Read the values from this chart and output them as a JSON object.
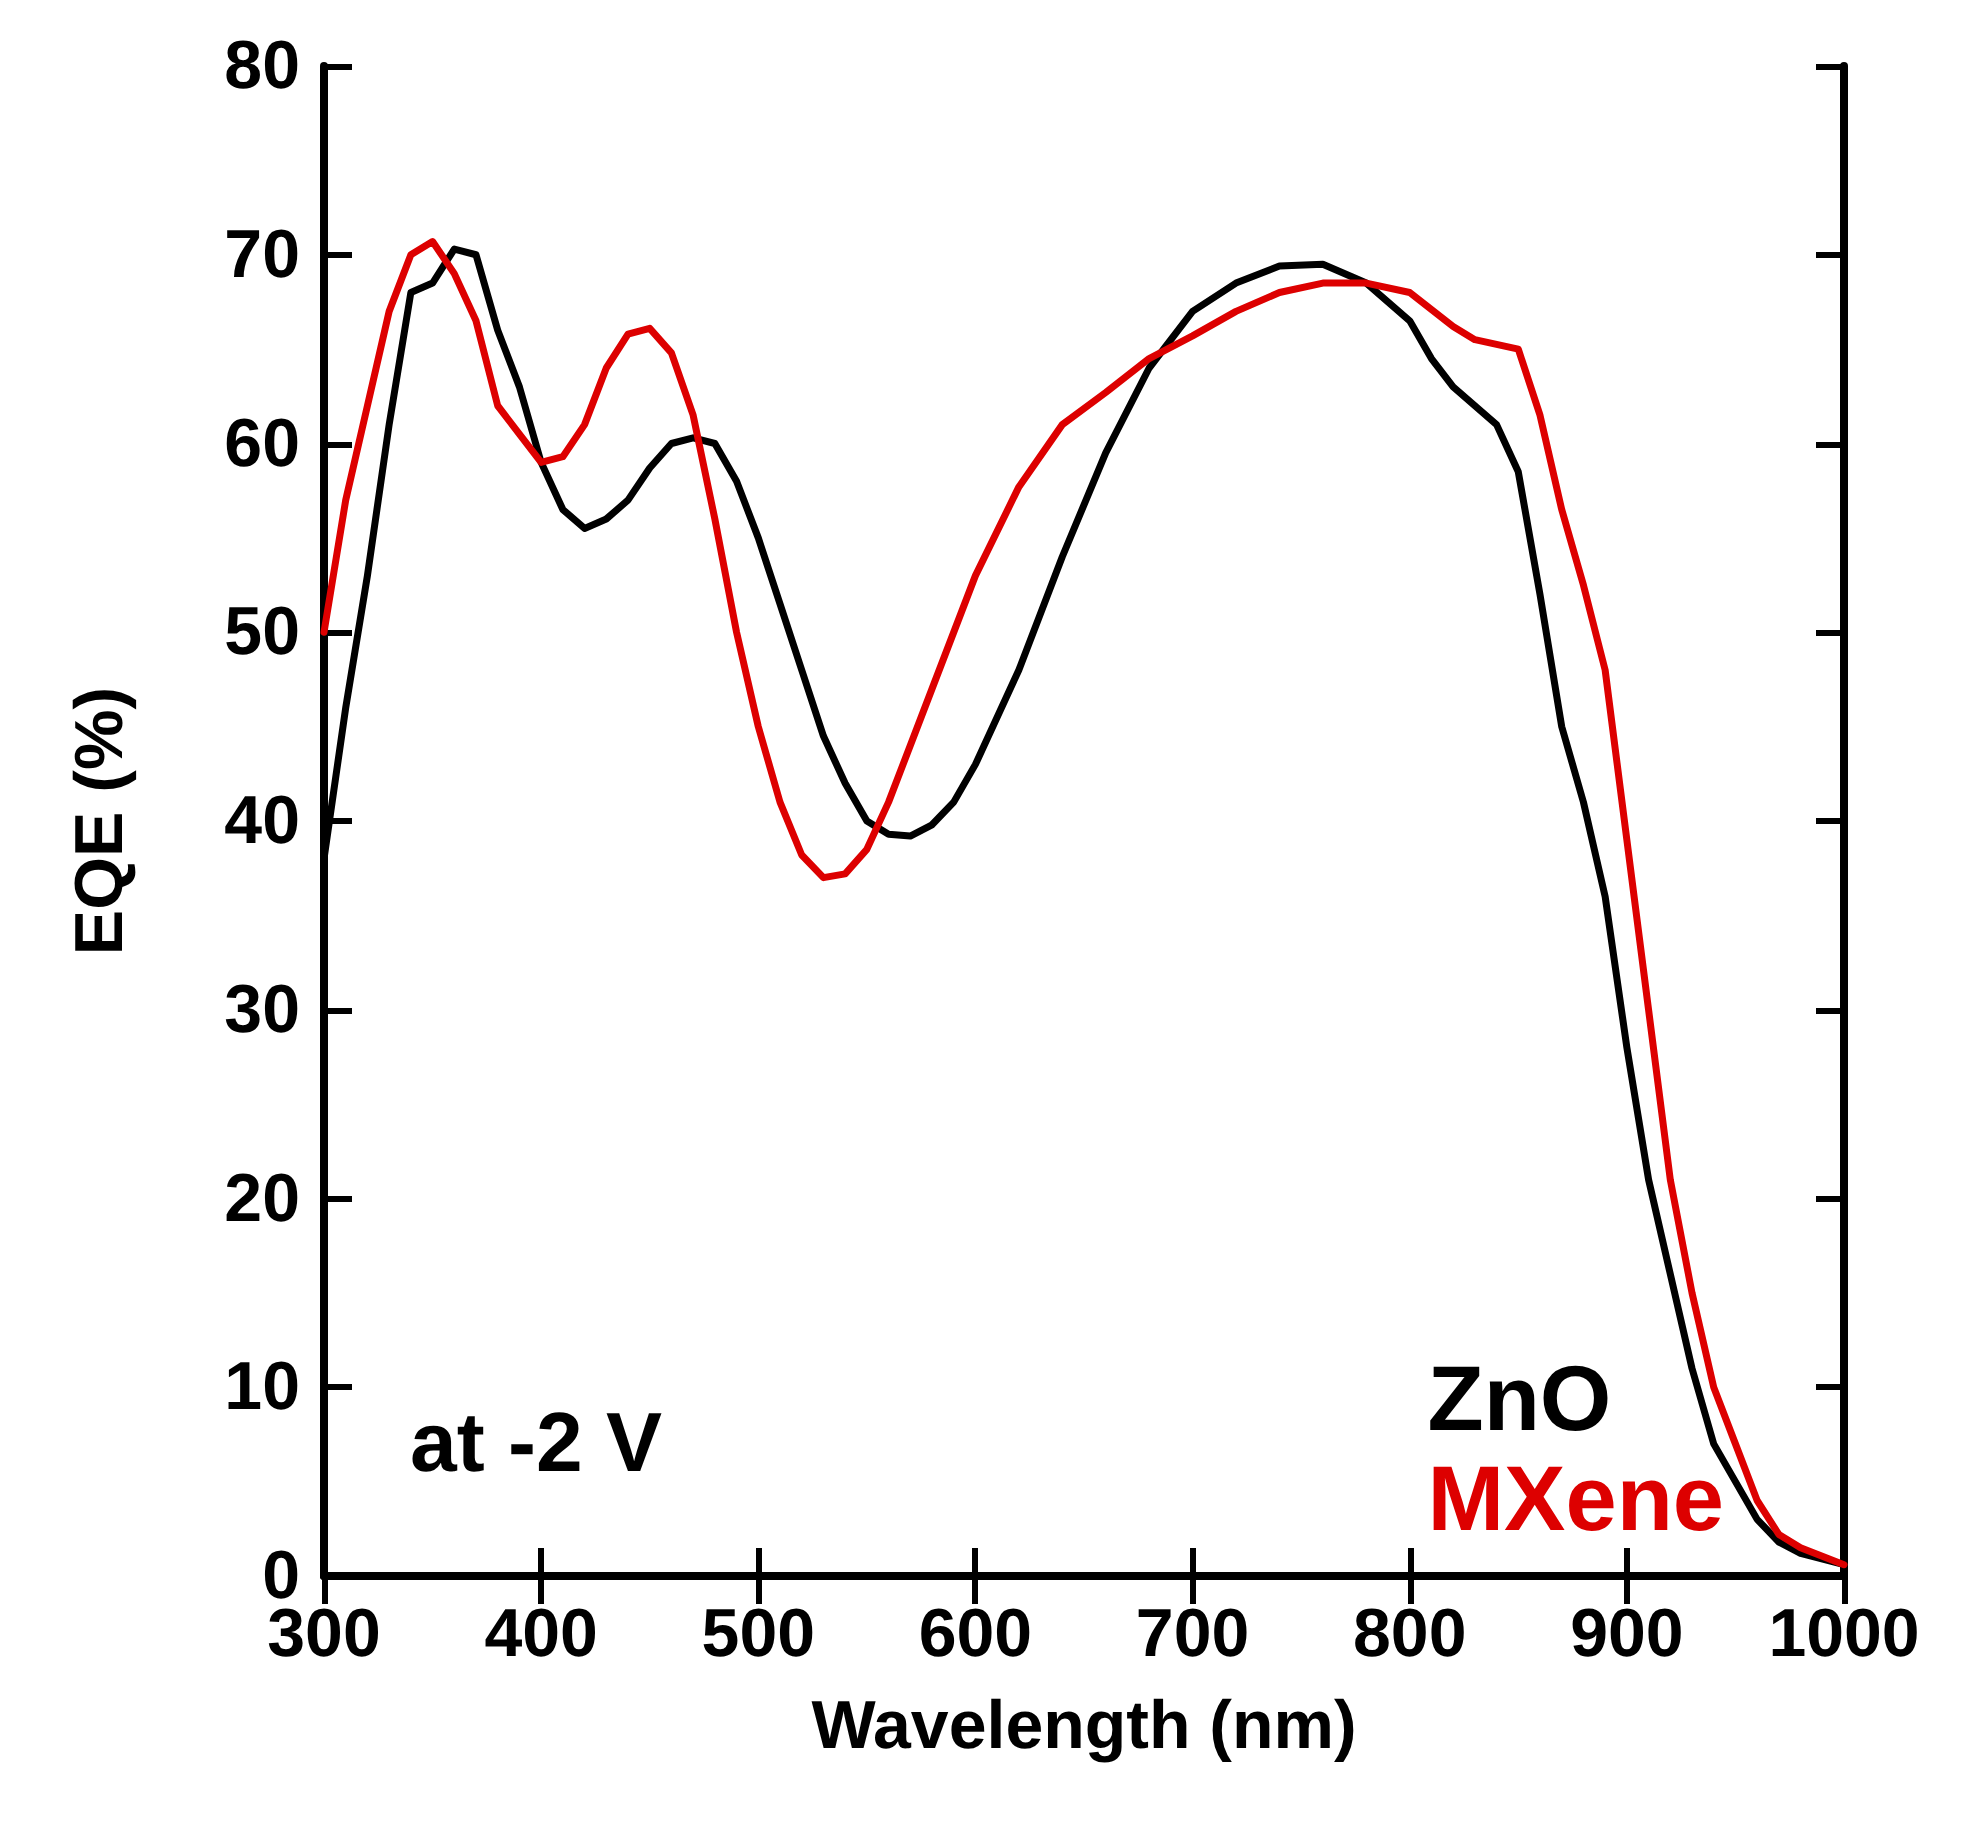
{
  "chart_data": {
    "type": "line",
    "xlabel": "Wavelength (nm)",
    "ylabel": "EQE (%)",
    "annotations": [
      "at -2 V"
    ],
    "xlim": [
      300,
      1000
    ],
    "xticks": [
      300,
      400,
      500,
      600,
      700,
      800,
      900,
      1000
    ],
    "ylim": [
      0,
      80
    ],
    "yticks": [
      0,
      10,
      20,
      30,
      40,
      50,
      60,
      70,
      80
    ],
    "grid": false,
    "legend": "bottom right",
    "marker": "none",
    "line_style": "solid",
    "series": [
      {
        "name": "ZnO",
        "color": "#000000",
        "x": [
          300,
          310,
          320,
          330,
          340,
          350,
          360,
          370,
          380,
          390,
          400,
          410,
          420,
          430,
          440,
          450,
          460,
          470,
          480,
          490,
          500,
          510,
          520,
          530,
          540,
          550,
          560,
          570,
          580,
          590,
          600,
          620,
          640,
          660,
          680,
          700,
          720,
          740,
          760,
          780,
          800,
          810,
          820,
          840,
          850,
          860,
          870,
          880,
          890,
          900,
          910,
          920,
          930,
          940,
          950,
          960,
          970,
          980,
          1000
        ],
        "values": [
          38,
          46,
          53,
          61,
          68,
          68.5,
          70.3,
          70,
          66,
          63,
          59,
          56.5,
          55.5,
          56,
          57,
          58.7,
          60,
          60.3,
          60,
          58,
          55,
          51.5,
          48,
          44.5,
          42,
          40,
          39.3,
          39.2,
          39.8,
          41,
          43,
          48,
          54,
          59.5,
          64,
          67,
          68.5,
          69.4,
          69.5,
          68.5,
          66.5,
          64.5,
          63,
          61,
          58.5,
          52,
          45,
          41,
          36,
          28,
          21,
          16,
          11,
          7,
          5,
          3,
          1.8,
          1.2,
          0.6
        ]
      },
      {
        "name": "MXene",
        "color": "#dd0000",
        "x": [
          300,
          310,
          320,
          330,
          340,
          350,
          360,
          370,
          380,
          390,
          400,
          410,
          420,
          430,
          440,
          450,
          460,
          470,
          480,
          490,
          500,
          510,
          520,
          530,
          540,
          550,
          560,
          580,
          600,
          620,
          640,
          660,
          680,
          700,
          720,
          740,
          760,
          780,
          800,
          820,
          830,
          850,
          860,
          870,
          880,
          890,
          900,
          910,
          920,
          930,
          940,
          950,
          960,
          970,
          980,
          1000
        ],
        "values": [
          50,
          57,
          62,
          67,
          70,
          70.7,
          69,
          66.5,
          62,
          60.5,
          59,
          59.3,
          61,
          64,
          65.8,
          66.1,
          64.8,
          61.5,
          56,
          50,
          45,
          41,
          38.2,
          37,
          37.2,
          38.5,
          41,
          47,
          53,
          57.7,
          61,
          62.7,
          64.5,
          65.7,
          67,
          68,
          68.5,
          68.5,
          68,
          66.2,
          65.5,
          65,
          61.5,
          56.5,
          52.5,
          48,
          39,
          30,
          21,
          15,
          10,
          7,
          4,
          2.2,
          1.5,
          0.6
        ]
      }
    ]
  }
}
